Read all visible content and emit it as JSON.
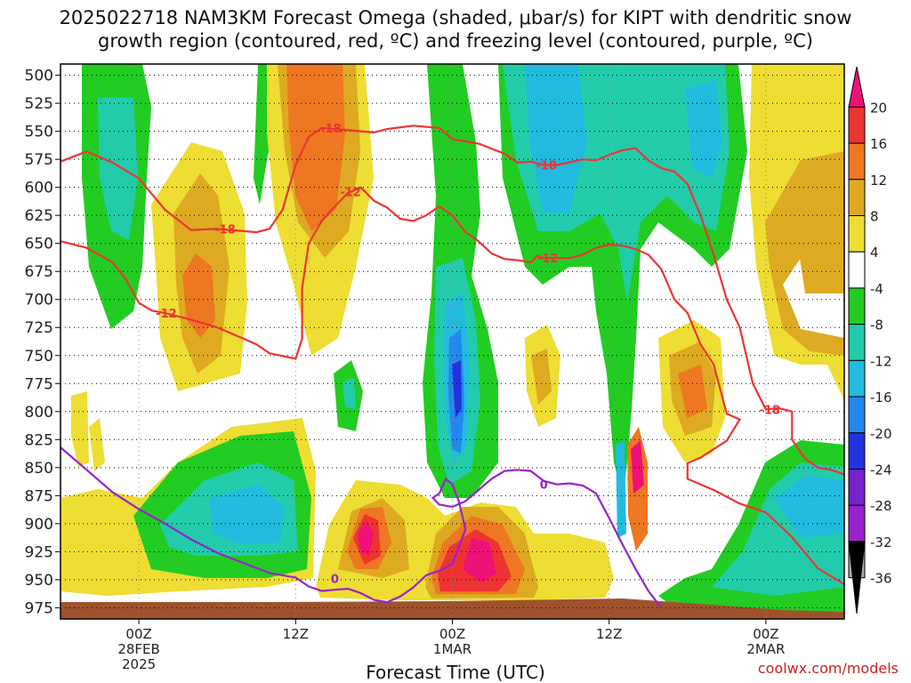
{
  "header": {
    "title_line1": "2025022718 NAM3KM Forecast Omega (shaded, μbar/s) for KIPT with dendritic snow",
    "title_line2": "growth region (contoured, red, ºC) and freezing level (contoured, purple, ºC)"
  },
  "footer": {
    "credit": "coolwx.com/models"
  },
  "chart_data": {
    "type": "heatmap",
    "title": "2025022718 NAM3KM Forecast Omega (shaded, μbar/s) for KIPT with dendritic snow growth region (contoured, red, ºC) and freezing level (contoured, purple, ºC)",
    "xlabel": "Forecast Time (UTC)",
    "ylabel": "",
    "x_ticks": [
      {
        "hour": 6,
        "lines": [
          "00Z",
          "28FEB",
          "2025"
        ]
      },
      {
        "hour": 18,
        "lines": [
          "12Z"
        ]
      },
      {
        "hour": 30,
        "lines": [
          "00Z",
          "1MAR"
        ]
      },
      {
        "hour": 42,
        "lines": [
          "12Z"
        ]
      },
      {
        "hour": 54,
        "lines": [
          "00Z",
          "2MAR"
        ]
      }
    ],
    "xlim": [
      0,
      60
    ],
    "y_ticks": [
      500,
      525,
      550,
      575,
      600,
      625,
      650,
      675,
      700,
      725,
      750,
      775,
      800,
      825,
      850,
      875,
      900,
      925,
      950,
      975
    ],
    "ylim": [
      490,
      985
    ],
    "y_axis": "pressure (hPa), inverted",
    "grid": true,
    "colorbar": {
      "levels": [
        "20",
        "16",
        "12",
        "8",
        "4",
        "-4",
        "-8",
        "-12",
        "-16",
        "-20",
        "-24",
        "-28",
        "-32",
        "-36"
      ],
      "colors": [
        "#ee1177",
        "#ee3333",
        "#ee7722",
        "#ddaa22",
        "#eedd33",
        "#ffffff",
        "#22cc22",
        "#22ccaa",
        "#22bbdd",
        "#2288ee",
        "#2233dd",
        "#7722cc",
        "#9922cc",
        "#aaaaaa",
        "#000000"
      ]
    },
    "contour_labels": [
      {
        "text": "-18",
        "x": 20.7,
        "y": 547
      },
      {
        "text": "-18",
        "x": 12.6,
        "y": 637
      },
      {
        "text": "-12",
        "x": 22.2,
        "y": 604
      },
      {
        "text": "-12",
        "x": 8.1,
        "y": 712
      },
      {
        "text": "-18",
        "x": 37.2,
        "y": 580
      },
      {
        "text": "-12",
        "x": 37.3,
        "y": 663
      },
      {
        "text": "-18",
        "x": 54.3,
        "y": 798
      },
      {
        "text": "0",
        "x": 21.0,
        "y": 949
      },
      {
        "text": "0",
        "x": 37.0,
        "y": 865
      }
    ],
    "series": [
      {
        "name": "-18 ºC",
        "color": "#ee3333",
        "role": "dendritic",
        "points": [
          [
            0,
            577
          ],
          [
            2,
            568
          ],
          [
            4,
            578
          ],
          [
            6,
            592
          ],
          [
            8,
            620
          ],
          [
            10,
            638
          ],
          [
            12,
            637
          ],
          [
            13,
            638
          ],
          [
            15,
            640
          ],
          [
            16,
            637
          ],
          [
            17,
            620
          ],
          [
            18,
            580
          ],
          [
            19,
            555
          ],
          [
            20,
            547
          ],
          [
            22,
            549
          ],
          [
            24,
            551
          ],
          [
            25,
            548
          ],
          [
            27,
            545
          ],
          [
            29,
            547
          ],
          [
            30,
            557
          ],
          [
            32,
            561
          ],
          [
            34,
            570
          ],
          [
            35,
            578
          ],
          [
            36,
            577
          ],
          [
            37,
            580
          ],
          [
            38,
            580
          ],
          [
            40,
            575
          ],
          [
            41,
            576
          ],
          [
            42,
            571
          ],
          [
            43,
            567
          ],
          [
            44,
            565
          ],
          [
            45,
            576
          ],
          [
            46,
            583
          ],
          [
            47,
            586
          ],
          [
            48,
            597
          ],
          [
            49,
            625
          ],
          [
            50,
            660
          ],
          [
            51,
            700
          ],
          [
            52,
            725
          ],
          [
            53,
            775
          ],
          [
            54,
            798
          ],
          [
            55,
            797
          ],
          [
            56,
            800
          ],
          [
            56,
            825
          ],
          [
            57,
            842
          ],
          [
            58,
            850
          ],
          [
            59,
            852
          ],
          [
            60,
            856
          ]
        ]
      },
      {
        "name": "-12 ºC",
        "color": "#ee3333",
        "role": "dendritic",
        "points": [
          [
            0,
            648
          ],
          [
            2,
            654
          ],
          [
            4,
            667
          ],
          [
            5,
            682
          ],
          [
            6,
            703
          ],
          [
            7,
            710
          ],
          [
            8,
            712
          ],
          [
            10,
            718
          ],
          [
            12,
            725
          ],
          [
            14,
            735
          ],
          [
            15,
            740
          ],
          [
            16,
            748
          ],
          [
            18,
            753
          ],
          [
            18.5,
            735
          ],
          [
            18.5,
            690
          ],
          [
            19,
            650
          ],
          [
            20,
            630
          ],
          [
            21,
            617
          ],
          [
            22,
            605
          ],
          [
            23,
            600
          ],
          [
            24,
            612
          ],
          [
            25,
            618
          ],
          [
            26,
            628
          ],
          [
            27,
            630
          ],
          [
            28,
            625
          ],
          [
            29,
            617
          ],
          [
            30,
            625
          ],
          [
            31,
            640
          ],
          [
            32,
            648
          ],
          [
            33,
            659
          ],
          [
            34,
            664
          ],
          [
            35,
            665
          ],
          [
            36,
            667
          ],
          [
            36.5,
            661
          ],
          [
            37,
            663
          ],
          [
            38,
            663
          ],
          [
            39,
            663
          ],
          [
            40,
            660
          ],
          [
            41,
            654
          ],
          [
            42,
            651
          ],
          [
            43,
            652
          ],
          [
            44,
            655
          ],
          [
            45,
            660
          ],
          [
            46,
            673
          ],
          [
            47,
            700
          ],
          [
            48,
            712
          ],
          [
            49,
            740
          ],
          [
            50,
            758
          ],
          [
            51,
            802
          ],
          [
            52,
            807
          ],
          [
            51,
            826
          ],
          [
            49,
            841
          ],
          [
            48,
            846
          ],
          [
            48,
            860
          ],
          [
            50,
            870
          ],
          [
            52,
            882
          ],
          [
            54,
            890
          ],
          [
            56,
            912
          ],
          [
            58,
            940
          ],
          [
            60,
            954
          ]
        ]
      },
      {
        "name": "0 ºC",
        "color": "#9922cc",
        "role": "freezing",
        "points": [
          [
            0,
            832
          ],
          [
            2,
            852
          ],
          [
            4,
            872
          ],
          [
            6,
            887
          ],
          [
            8,
            900
          ],
          [
            10,
            914
          ],
          [
            12,
            926
          ],
          [
            14,
            935
          ],
          [
            16,
            944
          ],
          [
            18,
            948
          ],
          [
            19,
            956
          ],
          [
            20,
            960
          ],
          [
            21,
            959
          ],
          [
            22,
            958
          ],
          [
            23,
            962
          ],
          [
            24,
            968
          ],
          [
            25,
            970
          ],
          [
            26,
            965
          ],
          [
            27,
            957
          ],
          [
            28,
            946
          ],
          [
            29,
            942
          ],
          [
            30,
            936
          ],
          [
            31,
            905
          ],
          [
            30.5,
            880
          ],
          [
            30,
            865
          ],
          [
            29.5,
            860
          ],
          [
            29,
            873
          ],
          [
            28.5,
            877
          ],
          [
            29,
            883
          ],
          [
            30,
            885
          ],
          [
            31,
            880
          ],
          [
            32,
            870
          ],
          [
            33,
            860
          ],
          [
            34,
            853
          ],
          [
            35,
            852
          ],
          [
            36,
            853
          ],
          [
            37,
            862
          ],
          [
            38,
            865
          ],
          [
            39,
            864
          ],
          [
            40,
            866
          ],
          [
            41,
            873
          ],
          [
            42,
            895
          ],
          [
            43,
            918
          ],
          [
            44,
            940
          ],
          [
            45,
            960
          ],
          [
            46,
            975
          ]
        ]
      }
    ]
  }
}
